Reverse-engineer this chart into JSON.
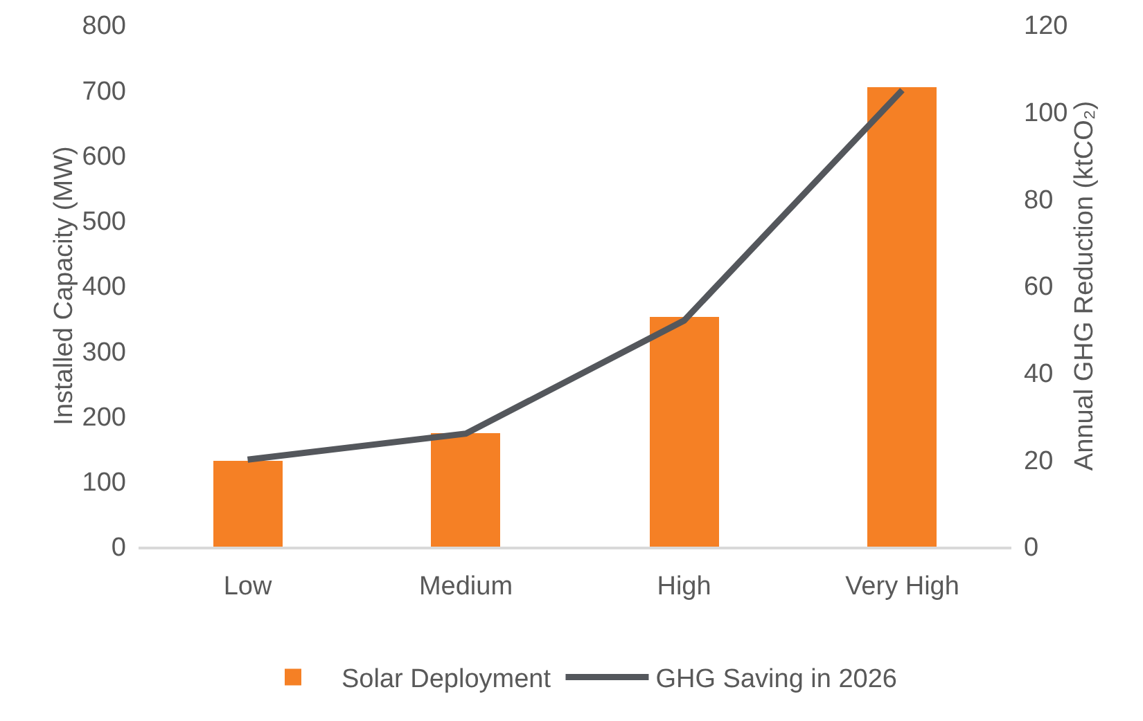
{
  "chart_data": {
    "type": "bar",
    "categories": [
      "Low",
      "Medium",
      "High",
      "Very High"
    ],
    "ylabel": "Installed Capacity (MW)",
    "y2label": "Annual GHG Reduction (ktCO₂)",
    "ylim": [
      0,
      800
    ],
    "yticks": [
      0,
      100,
      200,
      300,
      400,
      500,
      600,
      700,
      800
    ],
    "y2lim": [
      0,
      120
    ],
    "y2ticks": [
      0,
      20,
      40,
      60,
      80,
      100,
      120
    ],
    "grid": false,
    "legend": "bottom",
    "series": [
      {
        "name": "Solar Deployment",
        "color": "#f58025",
        "values": [
          131,
          175,
          352,
          705
        ]
      },
      {
        "name": "GHG Saving in 2026",
        "type": "line",
        "axis": "y2",
        "color": "#54575c",
        "marker": "none",
        "values": [
          20,
          26,
          52,
          105
        ]
      }
    ]
  }
}
